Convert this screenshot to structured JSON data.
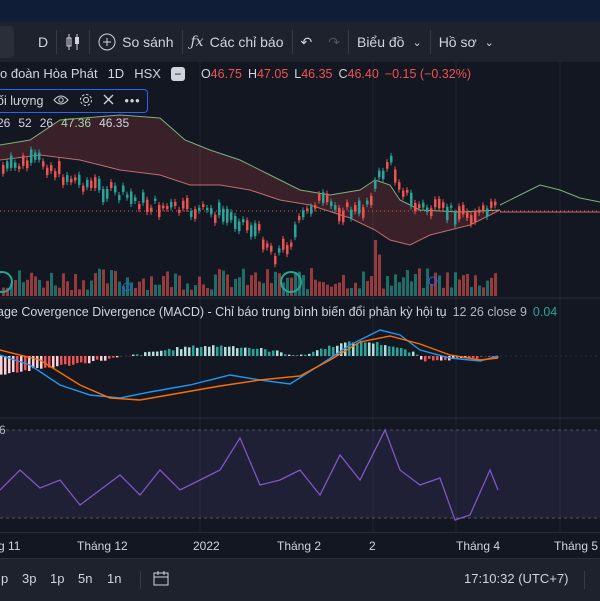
{
  "toolbar": {
    "interval": "D",
    "compare_label": "So sánh",
    "indicators_label": "Các chỉ báo",
    "chart_type_label": "Biểu đồ",
    "profile_label": "Hồ sơ"
  },
  "legend": {
    "symbol_name": "o đoàn Hòa Phát",
    "timeframe": "1D",
    "exchange": "HSX",
    "open_key": "O",
    "open": "46.75",
    "high_key": "H",
    "high": "47.05",
    "low_key": "L",
    "low": "46.35",
    "close_key": "C",
    "close": "46.40",
    "change": "−0.15 (−0.32%)"
  },
  "volume_legend": {
    "label": "ối lượng"
  },
  "ichimoku": {
    "v1": "26",
    "v2": "52",
    "v3": "26",
    "v4": "47.36",
    "v5": "46.35"
  },
  "macd": {
    "label": "age Covergence Divergence (MACD) - Chỉ báo trung bình biến đổi phân kỳ hội tụ",
    "params": "12 26 close 9",
    "value": "0.04"
  },
  "rsi": {
    "label": "6"
  },
  "time_axis": {
    "labels": [
      "g 11",
      "Tháng 12",
      "2022",
      "Tháng 2",
      "2",
      "Tháng 4",
      "Tháng 5"
    ]
  },
  "bottom": {
    "ranges": [
      "p",
      "3p",
      "1p",
      "5n",
      "1n"
    ],
    "clock": "17:10:32 (UTC+7)"
  },
  "colors": {
    "up": "#26a69a",
    "down": "#ef5350",
    "accent": "#2962ff",
    "rsi_line": "#7e57c2",
    "macd_line": "#2196f3",
    "signal_line": "#ff6d00"
  }
}
